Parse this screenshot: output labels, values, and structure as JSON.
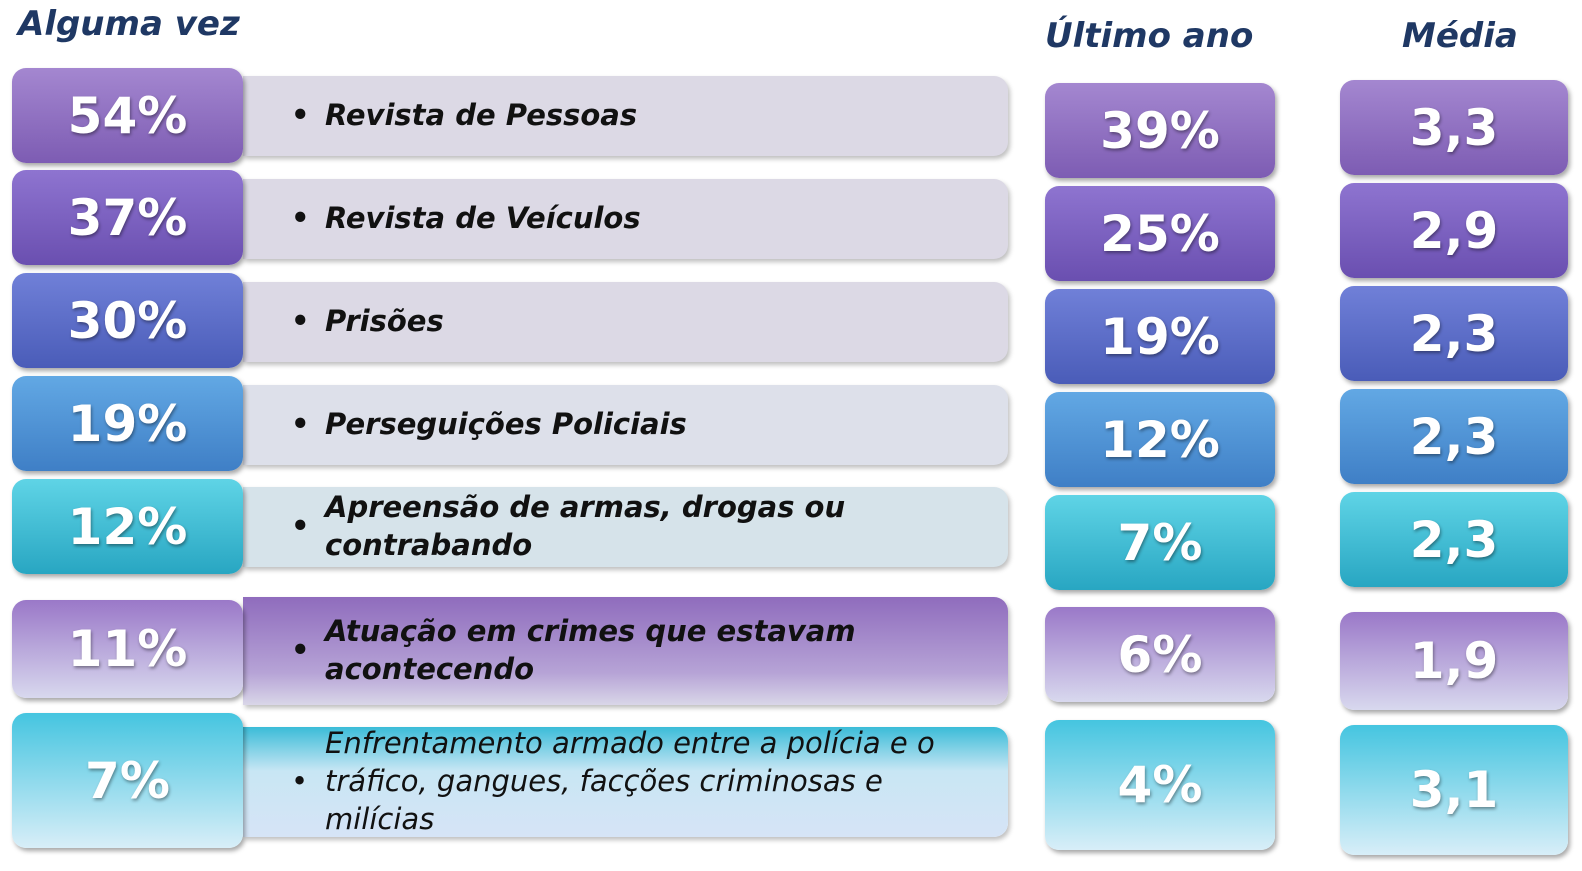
{
  "headers": {
    "ever": "Alguma vez",
    "last_year": "Último ano",
    "mean": "Média"
  },
  "rows": [
    {
      "ever": "54%",
      "label": "Revista de Pessoas",
      "last_year": "39%",
      "mean": "3,3"
    },
    {
      "ever": "37%",
      "label": "Revista de Veículos",
      "last_year": "25%",
      "mean": "2,9"
    },
    {
      "ever": "30%",
      "label": "Prisões",
      "last_year": "19%",
      "mean": "2,3"
    },
    {
      "ever": "19%",
      "label": "Perseguições Policiais",
      "last_year": "12%",
      "mean": "2,3"
    },
    {
      "ever": "12%",
      "label": "Apreensão de armas, drogas ou contrabando",
      "last_year": "7%",
      "mean": "2,3"
    },
    {
      "ever": "11%",
      "label": "Atuação em crimes que estavam acontecendo",
      "last_year": "6%",
      "mean": "1,9"
    },
    {
      "ever": "7%",
      "label": "Enfrentamento armado entre a polícia e o tráfico, gangues, facções criminosas e milícias",
      "last_year": "4%",
      "mean": "3,1"
    }
  ]
}
